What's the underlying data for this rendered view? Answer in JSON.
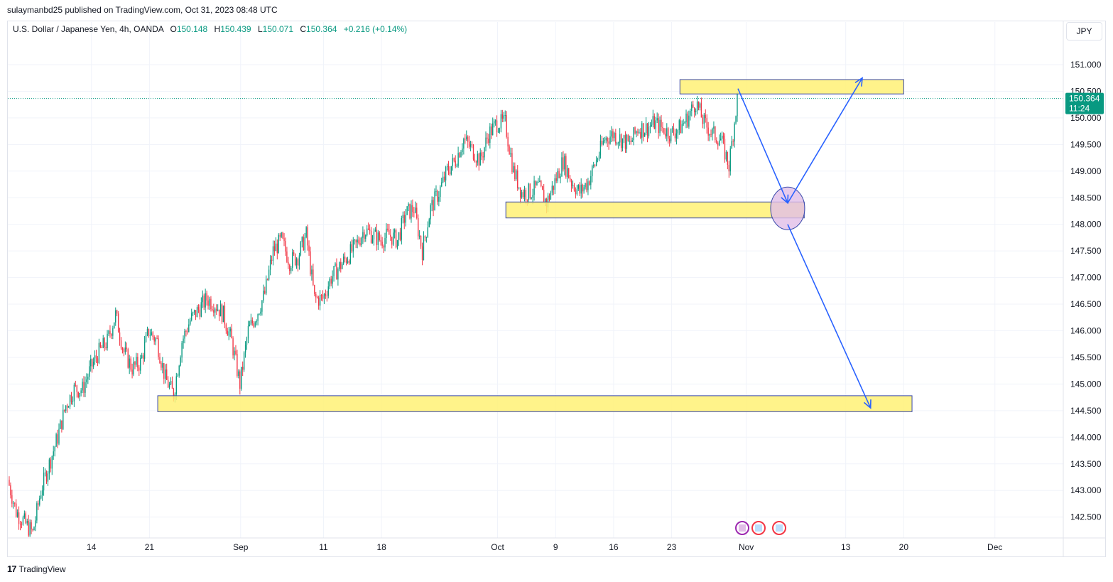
{
  "header": {
    "publisher_line": "sulaymanbd25 published on TradingView.com, Oct 31, 2023 08:48 UTC"
  },
  "legend": {
    "symbol": "U.S. Dollar / Japanese Yen, 4h, OANDA",
    "open_label": "O",
    "open": "150.148",
    "high_label": "H",
    "high": "150.439",
    "low_label": "L",
    "low": "150.071",
    "close_label": "C",
    "close": "150.364",
    "change": "+0.216 (+0.14%)"
  },
  "currency_button": "JPY",
  "price_tag": {
    "price": "150.364",
    "countdown": "11:24"
  },
  "footer": {
    "brand": "TradingView"
  },
  "colors": {
    "up": "#089981",
    "down": "#f23645",
    "zone_fill": "#fff176",
    "zone_border": "#3949ab",
    "arrow": "#2962ff",
    "ellipse": "#e1bee7"
  },
  "chart_data": {
    "type": "candlestick",
    "title": "U.S. Dollar / Japanese Yen, 4h, OANDA",
    "y_axis": {
      "ticks": [
        "151.000",
        "150.500",
        "150.000",
        "149.500",
        "149.000",
        "148.500",
        "148.000",
        "147.500",
        "147.000",
        "146.500",
        "146.000",
        "145.500",
        "145.000",
        "144.500",
        "144.000",
        "143.500",
        "143.000",
        "142.500"
      ],
      "range": [
        142.1,
        151.9
      ],
      "side": "right"
    },
    "x_axis": {
      "ticks": [
        {
          "label": "14",
          "day": "2023-08-14"
        },
        {
          "label": "21",
          "day": "2023-08-21"
        },
        {
          "label": "Sep",
          "day": "2023-09-01"
        },
        {
          "label": "11",
          "day": "2023-09-11"
        },
        {
          "label": "18",
          "day": "2023-09-18"
        },
        {
          "label": "Oct",
          "day": "2023-10-02"
        },
        {
          "label": "9",
          "day": "2023-10-09"
        },
        {
          "label": "16",
          "day": "2023-10-16"
        },
        {
          "label": "23",
          "day": "2023-10-23"
        },
        {
          "label": "Nov",
          "day": "2023-11-01"
        },
        {
          "label": "13",
          "day": "2023-11-13"
        },
        {
          "label": "20",
          "day": "2023-11-20"
        },
        {
          "label": "Dec",
          "day": "2023-12-01"
        }
      ]
    },
    "grid": true,
    "current_price": 150.364,
    "price_path": [
      [
        "2023-08-04",
        143.2
      ],
      [
        "2023-08-05",
        142.6
      ],
      [
        "2023-08-06",
        142.4
      ],
      [
        "2023-08-07",
        142.2
      ],
      [
        "2023-08-08",
        143.0
      ],
      [
        "2023-08-09",
        143.5
      ],
      [
        "2023-08-10",
        144.0
      ],
      [
        "2023-08-11",
        144.6
      ],
      [
        "2023-08-12",
        144.9
      ],
      [
        "2023-08-13",
        144.9
      ],
      [
        "2023-08-14",
        145.3
      ],
      [
        "2023-08-15",
        145.6
      ],
      [
        "2023-08-16",
        145.8
      ],
      [
        "2023-08-17",
        146.3
      ],
      [
        "2023-08-18",
        145.6
      ],
      [
        "2023-08-19",
        145.3
      ],
      [
        "2023-08-20",
        145.4
      ],
      [
        "2023-08-21",
        146.0
      ],
      [
        "2023-08-22",
        145.8
      ],
      [
        "2023-08-23",
        145.1
      ],
      [
        "2023-08-24",
        144.8
      ],
      [
        "2023-08-25",
        145.8
      ],
      [
        "2023-08-26",
        146.2
      ],
      [
        "2023-08-27",
        146.4
      ],
      [
        "2023-08-28",
        146.6
      ],
      [
        "2023-08-29",
        146.5
      ],
      [
        "2023-08-30",
        146.3
      ],
      [
        "2023-08-31",
        145.8
      ],
      [
        "2023-09-01",
        145.0
      ],
      [
        "2023-09-02",
        146.0
      ],
      [
        "2023-09-03",
        146.3
      ],
      [
        "2023-09-04",
        146.7
      ],
      [
        "2023-09-05",
        147.5
      ],
      [
        "2023-09-06",
        147.7
      ],
      [
        "2023-09-07",
        147.3
      ],
      [
        "2023-09-08",
        147.4
      ],
      [
        "2023-09-09",
        147.8
      ],
      [
        "2023-09-10",
        146.6
      ],
      [
        "2023-09-11",
        146.6
      ],
      [
        "2023-09-12",
        147.0
      ],
      [
        "2023-09-13",
        147.2
      ],
      [
        "2023-09-14",
        147.4
      ],
      [
        "2023-09-15",
        147.6
      ],
      [
        "2023-09-16",
        147.9
      ],
      [
        "2023-09-17",
        147.8
      ],
      [
        "2023-09-18",
        147.7
      ],
      [
        "2023-09-19",
        147.8
      ],
      [
        "2023-09-20",
        147.7
      ],
      [
        "2023-09-21",
        148.2
      ],
      [
        "2023-09-22",
        148.3
      ],
      [
        "2023-09-23",
        147.5
      ],
      [
        "2023-09-24",
        148.3
      ],
      [
        "2023-09-25",
        148.6
      ],
      [
        "2023-09-26",
        149.0
      ],
      [
        "2023-09-27",
        149.2
      ],
      [
        "2023-09-28",
        149.6
      ],
      [
        "2023-09-29",
        149.4
      ],
      [
        "2023-09-30",
        149.2
      ],
      [
        "2023-10-01",
        149.7
      ],
      [
        "2023-10-02",
        149.9
      ],
      [
        "2023-10-03",
        149.9
      ],
      [
        "2023-10-04",
        149.0
      ],
      [
        "2023-10-05",
        148.6
      ],
      [
        "2023-10-06",
        148.6
      ],
      [
        "2023-10-07",
        148.7
      ],
      [
        "2023-10-08",
        148.4
      ],
      [
        "2023-10-09",
        148.8
      ],
      [
        "2023-10-10",
        149.2
      ],
      [
        "2023-10-11",
        148.8
      ],
      [
        "2023-10-12",
        148.6
      ],
      [
        "2023-10-13",
        148.8
      ],
      [
        "2023-10-14",
        149.2
      ],
      [
        "2023-10-15",
        149.6
      ],
      [
        "2023-10-16",
        149.7
      ],
      [
        "2023-10-17",
        149.6
      ],
      [
        "2023-10-18",
        149.5
      ],
      [
        "2023-10-19",
        149.8
      ],
      [
        "2023-10-20",
        149.8
      ],
      [
        "2023-10-21",
        149.9
      ],
      [
        "2023-10-22",
        149.8
      ],
      [
        "2023-10-23",
        149.7
      ],
      [
        "2023-10-24",
        149.8
      ],
      [
        "2023-10-25",
        150.0
      ],
      [
        "2023-10-26",
        150.3
      ],
      [
        "2023-10-27",
        149.9
      ],
      [
        "2023-10-28",
        149.7
      ],
      [
        "2023-10-29",
        149.6
      ],
      [
        "2023-10-30",
        149.1
      ],
      [
        "2023-10-31",
        150.36
      ]
    ]
  },
  "annotations": {
    "zones": [
      {
        "name": "upper-zone",
        "start": "2023-10-24",
        "end": "2023-11-20",
        "top": 150.72,
        "bottom": 150.45
      },
      {
        "name": "middle-zone",
        "start": "2023-10-03",
        "end": "2023-11-08",
        "top": 148.42,
        "bottom": 148.12
      },
      {
        "name": "lower-zone",
        "start": "2023-08-22",
        "end": "2023-11-21",
        "top": 144.78,
        "bottom": 144.48
      }
    ],
    "arrows": [
      {
        "name": "drop-arrow",
        "from": [
          "2023-10-31",
          150.55
        ],
        "to": [
          "2023-11-06",
          148.4
        ]
      },
      {
        "name": "rise-arrow",
        "from": [
          "2023-11-06",
          148.4
        ],
        "to": [
          "2023-11-15",
          150.75
        ]
      },
      {
        "name": "fall-arrow",
        "from": [
          "2023-11-06",
          148.0
        ],
        "to": [
          "2023-11-16",
          144.55
        ]
      }
    ],
    "ellipse": {
      "center": [
        "2023-11-06",
        148.3
      ]
    },
    "event_icons": 3
  }
}
